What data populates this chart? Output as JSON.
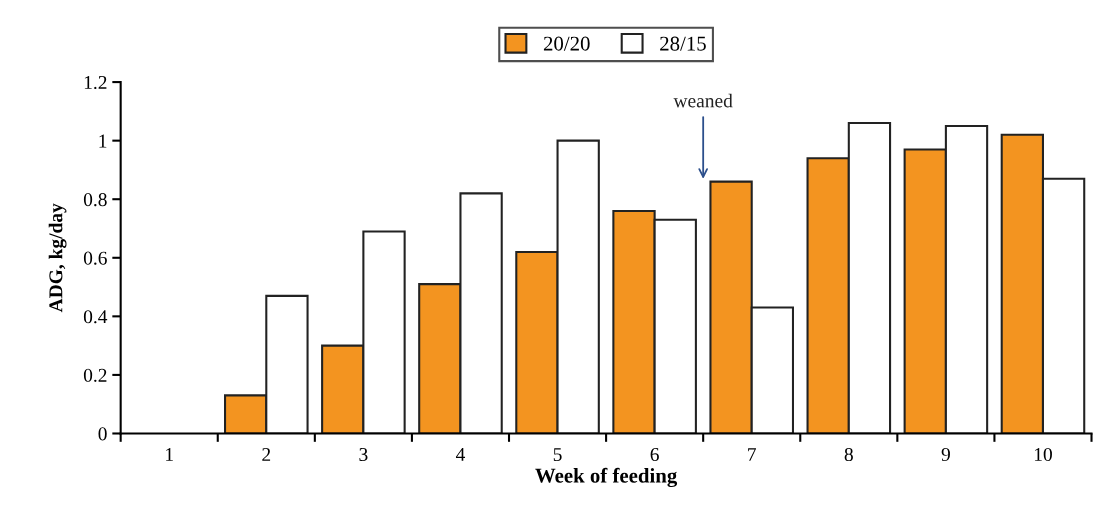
{
  "chart_data": {
    "type": "bar",
    "xlabel": "Week of feeding",
    "ylabel": "ADG, kg/day",
    "categories": [
      "1",
      "2",
      "3",
      "4",
      "5",
      "6",
      "7",
      "8",
      "9",
      "10"
    ],
    "series": [
      {
        "name": "20/20",
        "color": "#f39420",
        "values": [
          null,
          0.13,
          0.3,
          0.51,
          0.62,
          0.76,
          0.86,
          0.94,
          0.97,
          1.02
        ]
      },
      {
        "name": "28/15",
        "color": "#ffffff",
        "values": [
          null,
          0.47,
          0.69,
          0.82,
          1.0,
          0.73,
          0.43,
          1.06,
          1.05,
          0.87
        ]
      }
    ],
    "ylim": [
      0,
      1.2
    ],
    "yticks": [
      0,
      0.2,
      0.4,
      0.6,
      0.8,
      1,
      1.2
    ],
    "annotations": [
      "weaned"
    ],
    "legend": "top",
    "grid": false
  }
}
